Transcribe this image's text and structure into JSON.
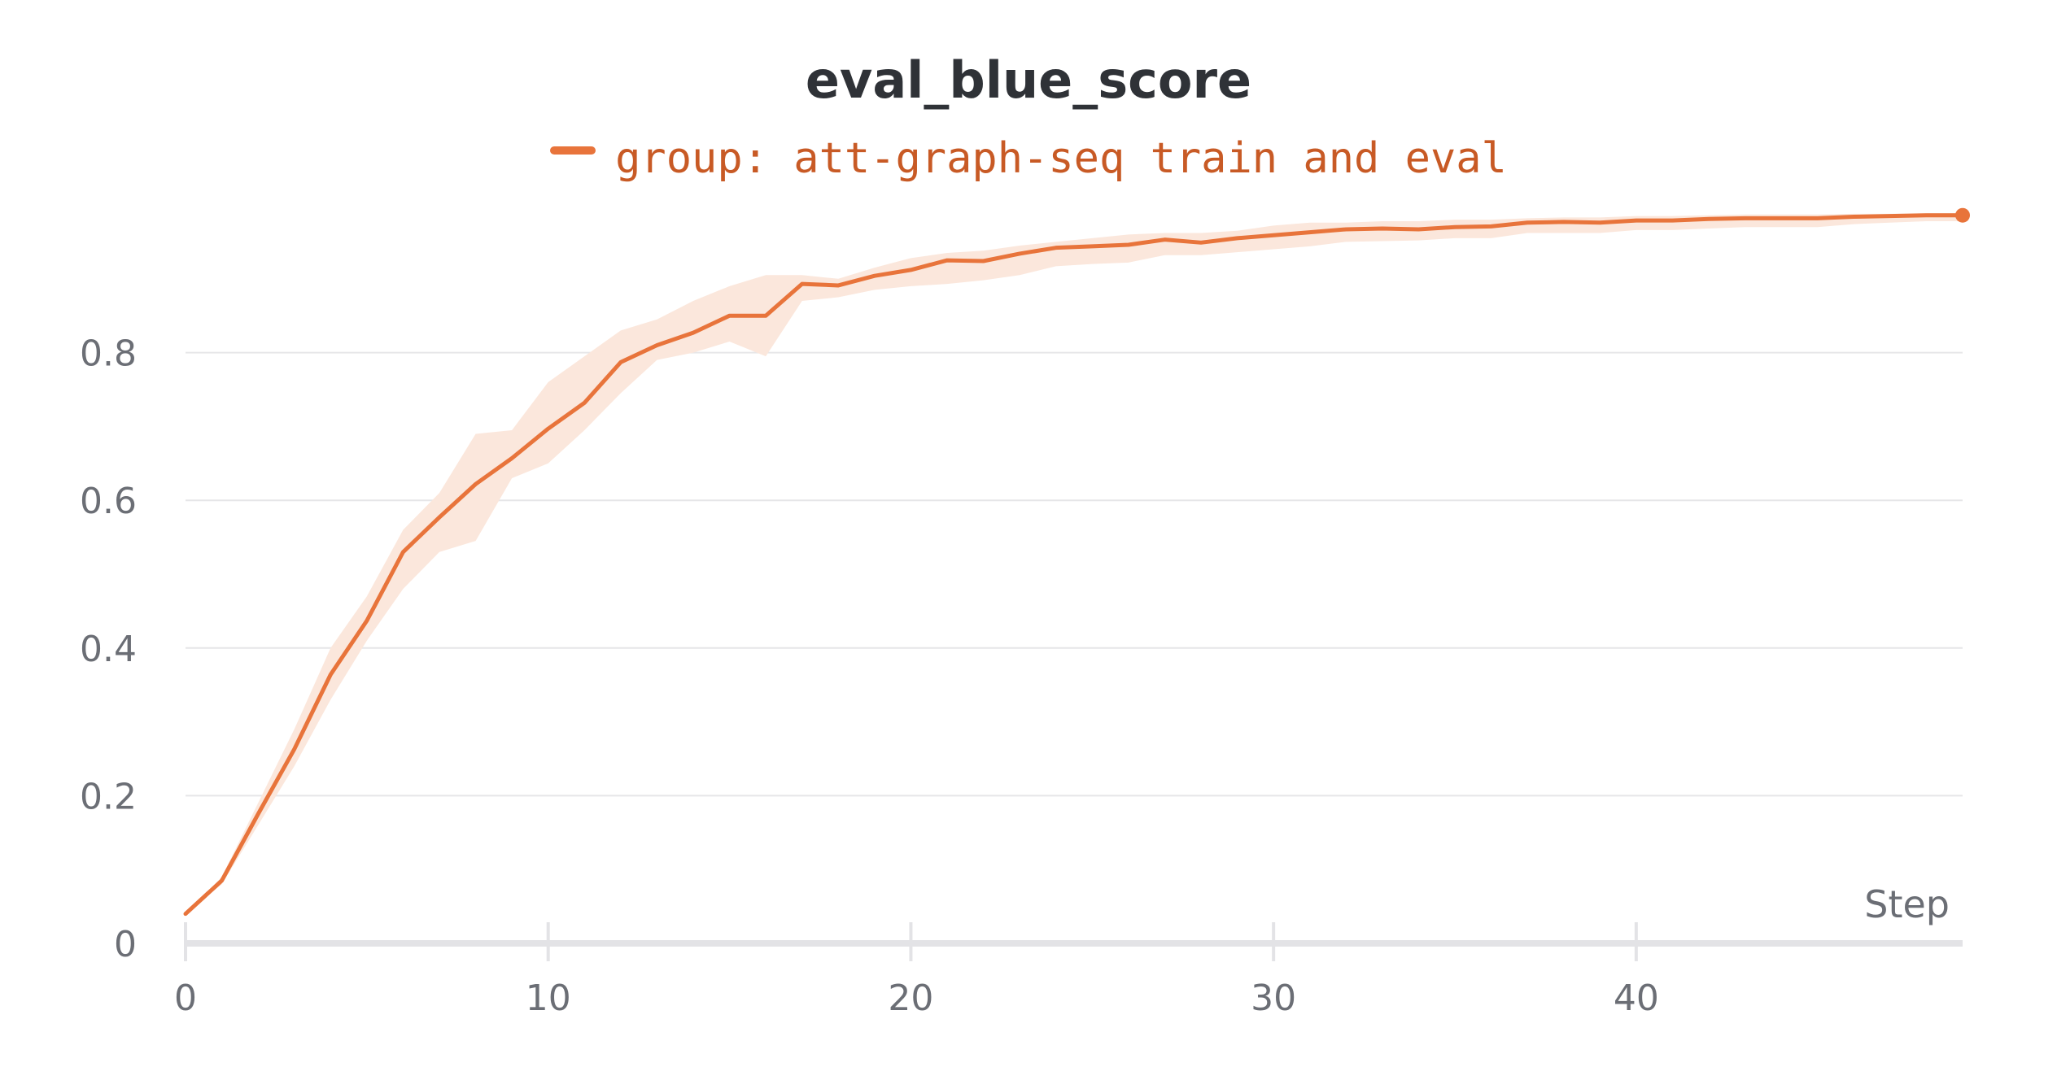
{
  "chart_data": {
    "type": "line",
    "title": "eval_blue_score",
    "xlabel": "Step",
    "ylabel": "",
    "xlim": [
      0,
      49
    ],
    "ylim": [
      0,
      1.0
    ],
    "x_ticks": [
      0,
      10,
      20,
      30,
      40
    ],
    "x_tick_labels": [
      "0",
      "10",
      "20",
      "30",
      "40"
    ],
    "y_ticks": [
      0,
      0.2,
      0.4,
      0.6,
      0.8
    ],
    "y_tick_labels": [
      "0",
      "0.2",
      "0.4",
      "0.6",
      "0.8"
    ],
    "grid": true,
    "legend_position": "top-center",
    "series": [
      {
        "name": "group: att-graph-seq train and eval",
        "color": "#e8743b",
        "band_color": "#fbe7dc",
        "x": [
          0,
          1,
          2,
          3,
          4,
          5,
          6,
          7,
          8,
          9,
          10,
          11,
          12,
          13,
          14,
          15,
          16,
          17,
          18,
          19,
          20,
          21,
          22,
          23,
          24,
          25,
          26,
          27,
          28,
          29,
          30,
          31,
          32,
          33,
          34,
          35,
          36,
          37,
          38,
          39,
          40,
          41,
          42,
          43,
          44,
          45,
          46,
          47,
          48,
          49
        ],
        "values": [
          0.04,
          0.085,
          0.175,
          0.263,
          0.364,
          0.437,
          0.53,
          0.577,
          0.622,
          0.657,
          0.697,
          0.732,
          0.787,
          0.81,
          0.827,
          0.85,
          0.85,
          0.893,
          0.891,
          0.904,
          0.912,
          0.925,
          0.924,
          0.934,
          0.942,
          0.944,
          0.946,
          0.953,
          0.949,
          0.955,
          0.959,
          0.963,
          0.967,
          0.968,
          0.967,
          0.97,
          0.971,
          0.976,
          0.977,
          0.976,
          0.979,
          0.979,
          0.981,
          0.982,
          0.982,
          0.982,
          0.984,
          0.985,
          0.986,
          0.986
        ],
        "band_upper": [
          0.04,
          0.09,
          0.19,
          0.29,
          0.4,
          0.47,
          0.56,
          0.61,
          0.69,
          0.695,
          0.76,
          0.795,
          0.83,
          0.845,
          0.87,
          0.89,
          0.905,
          0.905,
          0.9,
          0.915,
          0.928,
          0.935,
          0.938,
          0.945,
          0.95,
          0.955,
          0.96,
          0.962,
          0.962,
          0.965,
          0.972,
          0.976,
          0.976,
          0.978,
          0.978,
          0.98,
          0.98,
          0.982,
          0.983,
          0.983,
          0.985,
          0.985,
          0.986,
          0.987,
          0.987,
          0.987,
          0.988,
          0.988,
          0.989,
          0.989
        ],
        "band_lower": [
          0.04,
          0.08,
          0.16,
          0.24,
          0.33,
          0.41,
          0.48,
          0.53,
          0.545,
          0.63,
          0.65,
          0.695,
          0.745,
          0.79,
          0.8,
          0.815,
          0.795,
          0.87,
          0.875,
          0.885,
          0.89,
          0.893,
          0.898,
          0.905,
          0.917,
          0.92,
          0.922,
          0.932,
          0.932,
          0.936,
          0.94,
          0.944,
          0.95,
          0.951,
          0.952,
          0.955,
          0.955,
          0.962,
          0.962,
          0.962,
          0.966,
          0.966,
          0.968,
          0.97,
          0.97,
          0.97,
          0.974,
          0.976,
          0.978,
          0.978
        ]
      }
    ]
  }
}
